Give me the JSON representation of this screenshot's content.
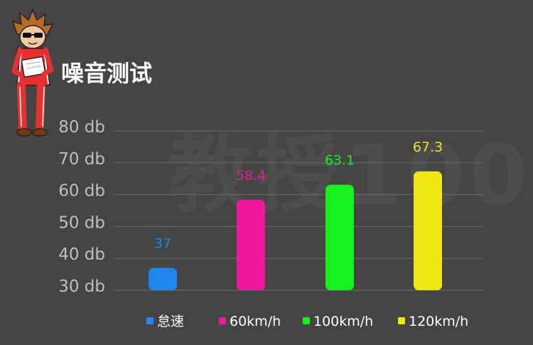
{
  "title": "噪音测试",
  "watermark": "教授100",
  "chart_data": {
    "type": "bar",
    "categories": [
      "怠速",
      "60km/h",
      "100km/h",
      "120km/h"
    ],
    "values": [
      37,
      58.4,
      63.1,
      67.3
    ],
    "value_labels": [
      "37",
      "58.4",
      "63.1",
      "67.3"
    ],
    "colors": [
      "#1f88f0",
      "#f0189c",
      "#18f01e",
      "#f0e614"
    ],
    "ylim": [
      30,
      80
    ],
    "y_ticks": [
      30,
      40,
      50,
      60,
      70,
      80
    ],
    "y_tick_labels": [
      "30 db",
      "40 db",
      "50 db",
      "60 db",
      "70 db",
      "80 db"
    ],
    "grid": true,
    "legend_position": "bottom"
  }
}
